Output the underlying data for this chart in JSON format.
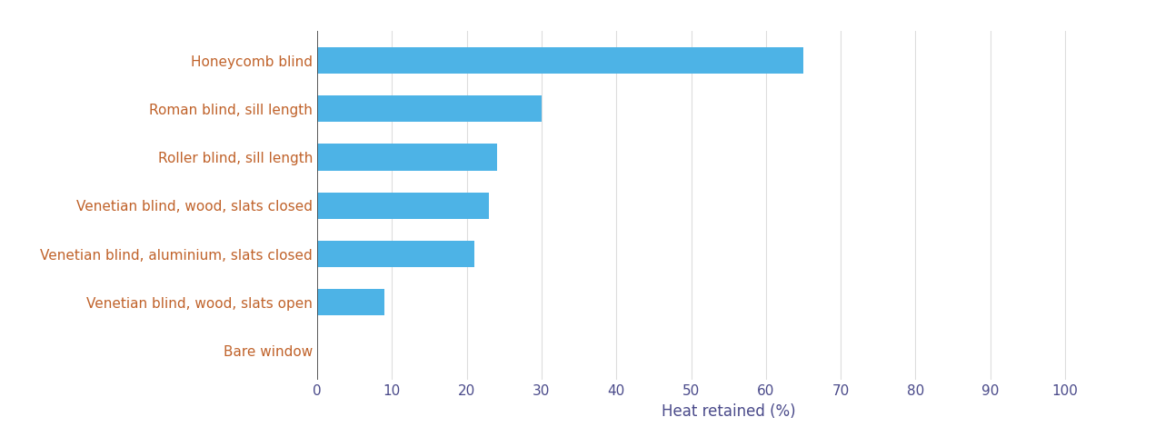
{
  "categories": [
    "Bare window",
    "Venetian blind, wood, slats open",
    "Venetian blind, aluminium, slats closed",
    "Venetian blind, wood, slats closed",
    "Roller blind, sill length",
    "Roman blind, sill length",
    "Honeycomb blind"
  ],
  "values": [
    0,
    9,
    21,
    23,
    24,
    30,
    65
  ],
  "bar_color": "#4db3e6",
  "xlabel": "Heat retained (%)",
  "xlim": [
    0,
    110
  ],
  "xticks": [
    0,
    10,
    20,
    30,
    40,
    50,
    60,
    70,
    80,
    90,
    100
  ],
  "label_color": "#c0622a",
  "xlabel_color": "#4a4a8a",
  "tick_color": "#4a4a8a",
  "background_color": "#ffffff",
  "grid_color": "#dddddd",
  "bar_height": 0.55,
  "label_fontsize": 11,
  "xlabel_fontsize": 12
}
